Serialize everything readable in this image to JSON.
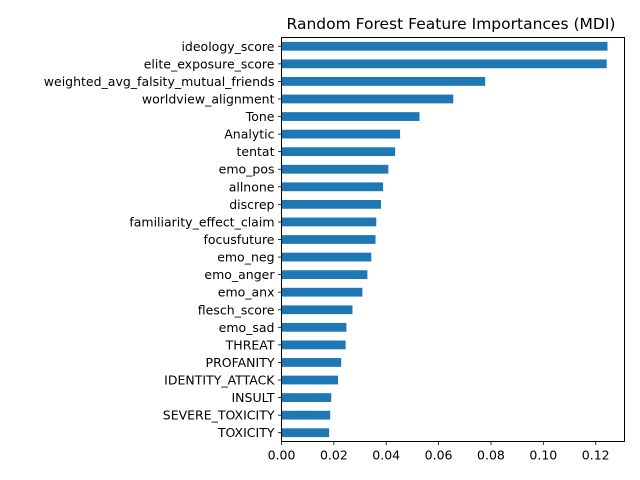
{
  "chart_data": {
    "type": "bar",
    "orientation": "horizontal",
    "title": "Random Forest Feature Importances (MDI)",
    "xlabel": "",
    "ylabel": "",
    "xlim": [
      0,
      0.131
    ],
    "xticks": [
      0.0,
      0.02,
      0.04,
      0.06,
      0.08,
      0.1,
      0.12
    ],
    "xtick_labels": [
      "0.00",
      "0.02",
      "0.04",
      "0.06",
      "0.08",
      "0.10",
      "0.12"
    ],
    "bar_color": "#1f77b4",
    "grid": false,
    "categories": [
      "ideology_score",
      "elite_exposure_score",
      "weighted_avg_falsity_mutual_friends",
      "worldview_alignment",
      "Tone",
      "Analytic",
      "tentat",
      "emo_pos",
      "allnone",
      "discrep",
      "familiarity_effect_claim",
      "focusfuture",
      "emo_neg",
      "emo_anger",
      "emo_anx",
      "flesch_score",
      "emo_sad",
      "THREAT",
      "PROFANITY",
      "IDENTITY_ATTACK",
      "INSULT",
      "SEVERE_TOXICITY",
      "TOXICITY"
    ],
    "values": [
      0.1245,
      0.1242,
      0.0778,
      0.0656,
      0.0527,
      0.0453,
      0.0434,
      0.0408,
      0.0388,
      0.038,
      0.0362,
      0.0359,
      0.0343,
      0.0328,
      0.0309,
      0.0271,
      0.0248,
      0.0245,
      0.0228,
      0.0216,
      0.019,
      0.0186,
      0.0182
    ]
  }
}
